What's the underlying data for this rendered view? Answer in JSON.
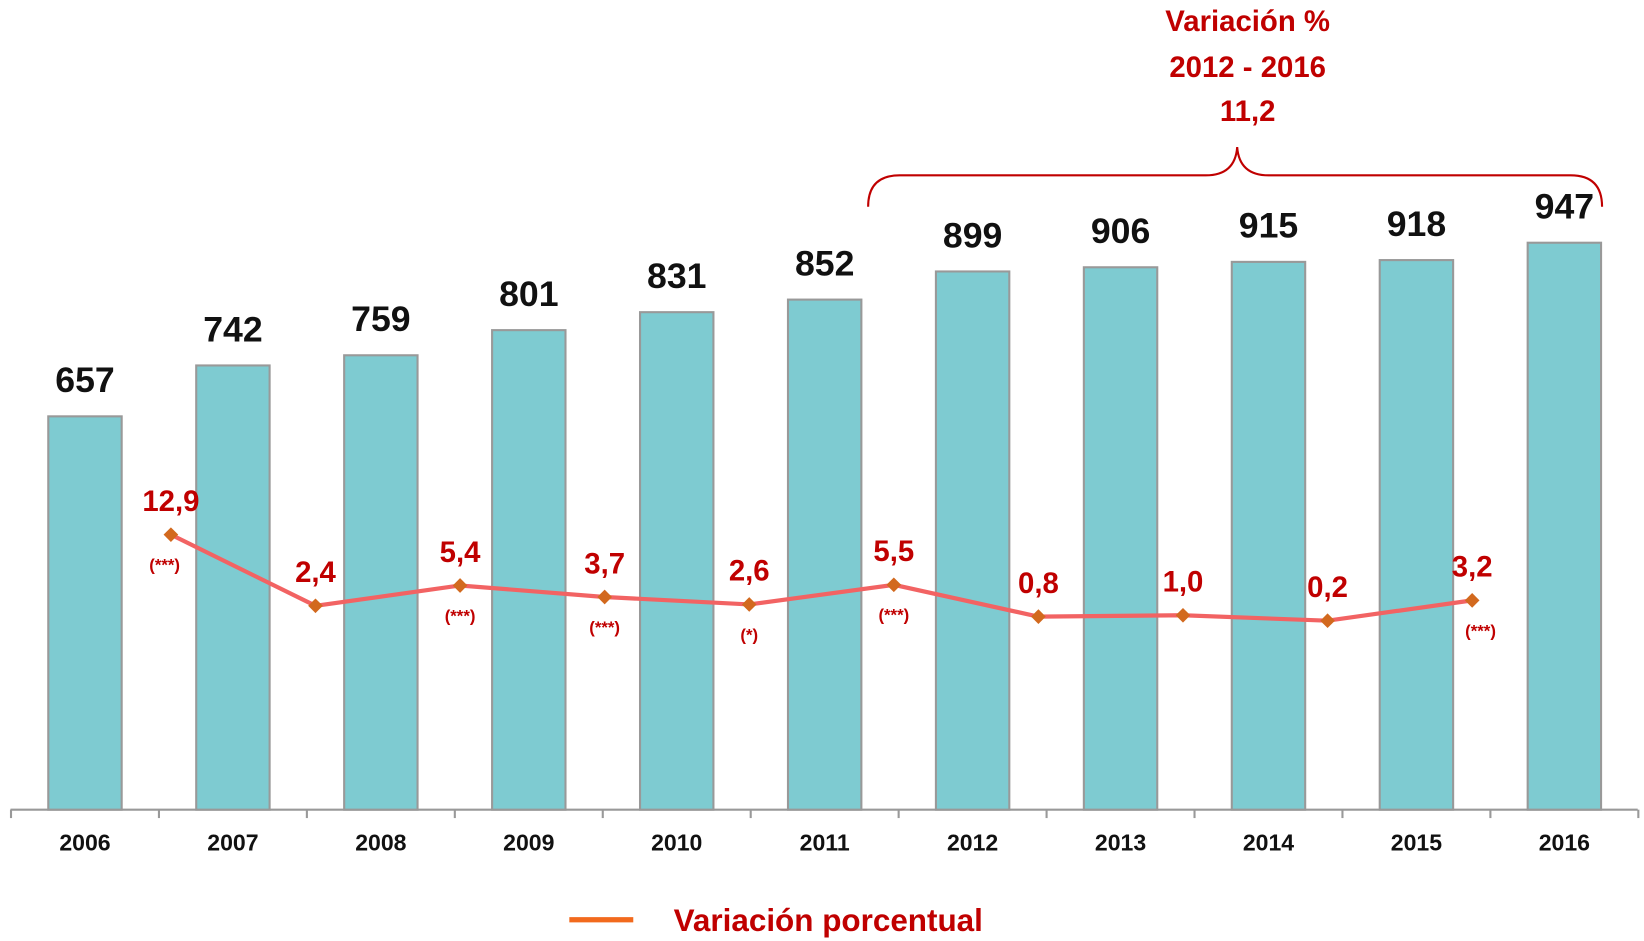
{
  "chart_data": {
    "type": "bar-line",
    "annotation": [
      "Variación %",
      "2012 - 2016",
      "11,2"
    ],
    "categories": [
      "2006",
      "2007",
      "2008",
      "2009",
      "2010",
      "2011",
      "2012",
      "2013",
      "2014",
      "2015",
      "2016"
    ],
    "series": [
      {
        "type": "bar",
        "color": "#7ecbd1",
        "values": [
          657,
          742,
          759,
          801,
          831,
          852,
          899,
          906,
          915,
          918,
          947
        ]
      },
      {
        "type": "line",
        "name": "Variación porcentual",
        "axis": "y2",
        "color": "#f26363",
        "marker_color": "#d2691e",
        "values": [
          null,
          12.9,
          2.4,
          5.4,
          3.7,
          2.6,
          5.5,
          0.8,
          1.0,
          0.2,
          3.2
        ],
        "value_labels": [
          null,
          "12,9",
          "2,4",
          "5,4",
          "3,7",
          "2,6",
          "5,5",
          "0,8",
          "1,0",
          "0,2",
          "3,2"
        ],
        "notes": [
          null,
          "(***)",
          null,
          "(***)",
          "(***)",
          "(*)",
          "(***)",
          null,
          null,
          null,
          "(***)"
        ]
      }
    ],
    "ylim": [
      0,
      1352
    ],
    "y2lim": [
      -27.7,
      91.8
    ],
    "legend": "bottom"
  }
}
